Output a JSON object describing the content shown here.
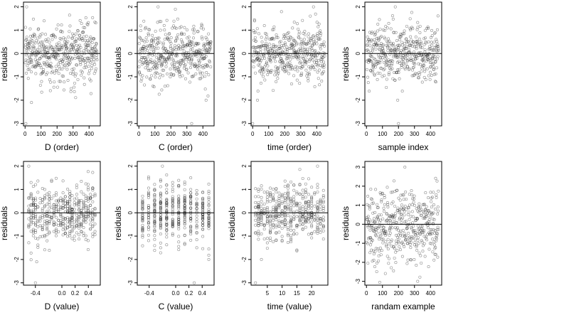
{
  "figure": {
    "panel_count": 8,
    "colors": {
      "point": "#333333",
      "line": "#000000",
      "frame": "#000000",
      "background": "#ffffff"
    }
  },
  "chart_data": [
    {
      "type": "scatter",
      "xlabel": "D (order)",
      "ylabel": "residuals",
      "xlim": [
        -10,
        470
      ],
      "ylim": [
        -3.1,
        2.2
      ],
      "xticks": [
        0,
        100,
        200,
        300,
        400
      ],
      "yticks": [
        -3,
        -2,
        -1,
        0,
        1,
        2
      ],
      "hline": 0,
      "n_points": 450,
      "distribution": "approx. normal, mean 0, sd 0.6",
      "notable_points": [
        [
          10,
          2.0
        ],
        [
          5,
          -3.0
        ],
        [
          40,
          -2.1
        ]
      ]
    },
    {
      "type": "scatter",
      "xlabel": "C (order)",
      "ylabel": "residuals",
      "xlim": [
        -10,
        470
      ],
      "ylim": [
        -3.1,
        2.2
      ],
      "xticks": [
        0,
        100,
        200,
        300,
        400
      ],
      "yticks": [
        -3,
        -2,
        -1,
        0,
        1,
        2
      ],
      "hline": 0,
      "n_points": 450,
      "distribution": "approx. normal, mean 0, sd 0.6",
      "notable_points": [
        [
          120,
          2.0
        ],
        [
          330,
          -3.0
        ],
        [
          420,
          -2.0
        ]
      ]
    },
    {
      "type": "scatter",
      "xlabel": "time (order)",
      "ylabel": "residuals",
      "xlim": [
        -10,
        470
      ],
      "ylim": [
        -3.1,
        2.2
      ],
      "xticks": [
        0,
        100,
        200,
        300,
        400
      ],
      "yticks": [
        -3,
        -2,
        -1,
        0,
        1,
        2
      ],
      "hline": 0,
      "n_points": 450,
      "distribution": "approx. normal, mean 0, sd 0.6",
      "notable_points": [
        [
          380,
          2.0
        ],
        [
          0,
          -3.0
        ],
        [
          30,
          -2.0
        ]
      ]
    },
    {
      "type": "scatter",
      "xlabel": "sample index",
      "ylabel": "residuals",
      "xlim": [
        -10,
        470
      ],
      "ylim": [
        -3.1,
        2.2
      ],
      "xticks": [
        0,
        100,
        200,
        300,
        400
      ],
      "yticks": [
        -3,
        -2,
        -1,
        0,
        1,
        2
      ],
      "hline": 0,
      "n_points": 450,
      "distribution": "approx. normal, mean 0, sd 0.6",
      "notable_points": [
        [
          180,
          2.0
        ],
        [
          200,
          -3.0
        ],
        [
          195,
          -2.0
        ]
      ]
    },
    {
      "type": "scatter",
      "xlabel": "D (value)",
      "ylabel": "residuals",
      "xlim": [
        -0.58,
        0.58
      ],
      "ylim": [
        -3.1,
        2.2
      ],
      "xticks": [
        -0.4,
        0.0,
        0.2,
        0.4
      ],
      "xtick_labels": [
        "-0.4",
        "0.0",
        "0.2",
        "0.4"
      ],
      "yticks": [
        -3,
        -2,
        -1,
        0,
        1,
        2
      ],
      "hline": 0,
      "n_points": 450,
      "distribution": "approx. normal, mean 0, sd 0.6; x takes ~30 discrete levels in [-0.5, 0.5]",
      "notable_points": [
        [
          -0.5,
          2.0
        ],
        [
          -0.4,
          -3.0
        ],
        [
          -0.38,
          -2.1
        ]
      ]
    },
    {
      "type": "scatter",
      "xlabel": "C (value)",
      "ylabel": "residuals",
      "xlim": [
        -0.58,
        0.58
      ],
      "ylim": [
        -3.1,
        2.2
      ],
      "xticks": [
        -0.4,
        0.0,
        0.2,
        0.4
      ],
      "xtick_labels": [
        "-0.4",
        "0.0",
        "0.2",
        "0.4"
      ],
      "yticks": [
        -3,
        -2,
        -1,
        0,
        1,
        2
      ],
      "hline": 0,
      "n_points": 450,
      "distribution": "approx. normal, mean 0, sd 0.6; x takes ~12 discrete levels in [-0.5, 0.5]",
      "notable_points": [
        [
          -0.2,
          2.0
        ],
        [
          0.28,
          -3.0
        ],
        [
          0.5,
          -2.0
        ]
      ]
    },
    {
      "type": "scatter",
      "xlabel": "time (value)",
      "ylabel": "residuals",
      "xlim": [
        -0.5,
        25.5
      ],
      "ylim": [
        -3.1,
        2.2
      ],
      "xticks": [
        5,
        10,
        15,
        20
      ],
      "yticks": [
        -3,
        -2,
        -1,
        0,
        1,
        2
      ],
      "hline": 0,
      "n_points": 450,
      "distribution": "approx. normal, mean 0, sd 0.6; x takes integer levels 1-24",
      "notable_points": [
        [
          22,
          2.0
        ],
        [
          1,
          -3.0
        ],
        [
          3,
          -2.0
        ]
      ]
    },
    {
      "type": "scatter",
      "xlabel": "randam example",
      "ylabel": "residuals",
      "xlim": [
        -10,
        470
      ],
      "ylim": [
        -3.2,
        3.3
      ],
      "xticks": [
        0,
        100,
        200,
        300,
        400
      ],
      "yticks": [
        -3,
        -2,
        -1,
        0,
        1,
        2,
        3
      ],
      "hline": 0,
      "n_points": 450,
      "distribution": "approx. normal, mean 0, sd 1.0",
      "notable_points": [
        [
          240,
          3.0
        ],
        [
          320,
          -3.0
        ]
      ]
    }
  ]
}
